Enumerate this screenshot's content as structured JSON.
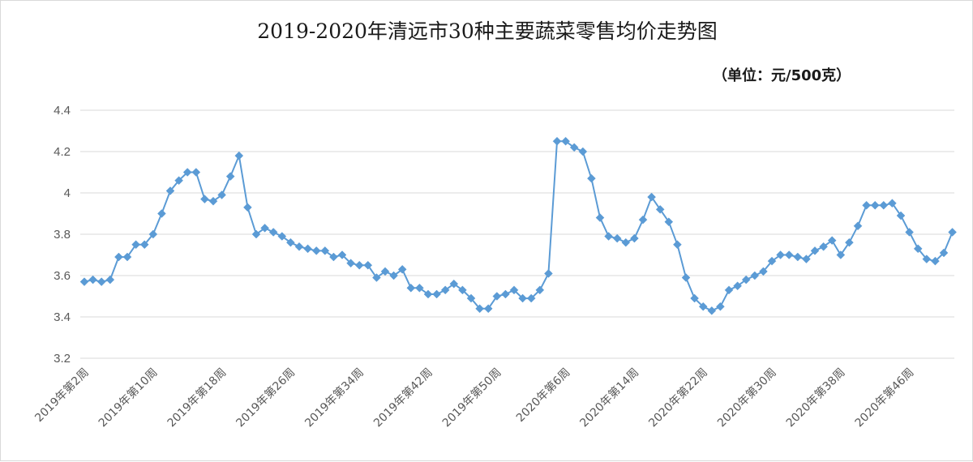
{
  "chart_data": {
    "type": "line",
    "title": "2019-2020年清远市30种主要蔬菜零售均价走势图",
    "unit_note": "（单位：元/500克）",
    "xlabel": "",
    "ylabel": "",
    "ylim": [
      3.2,
      4.4
    ],
    "yticks": [
      "3.2",
      "3.4",
      "3.6",
      "3.8",
      "4",
      "4.2",
      "4.4"
    ],
    "grid": true,
    "legend": "none",
    "series_color": "#5b9bd5",
    "x_tick_labels": [
      "2019年第2周",
      "2019年第10周",
      "2019年第18周",
      "2019年第26周",
      "2019年第34周",
      "2019年第42周",
      "2019年第50周",
      "2020年第6周",
      "2020年第14周",
      "2020年第22周",
      "2020年第30周",
      "2020年第38周",
      "2020年第46周"
    ],
    "series": [
      {
        "values": [
          3.57,
          3.58,
          3.57,
          3.58,
          3.69,
          3.69,
          3.75,
          3.75,
          3.8,
          3.9,
          4.01,
          4.06,
          4.1,
          4.1,
          3.97,
          3.96,
          3.99,
          4.08,
          4.18,
          3.93,
          3.8,
          3.83,
          3.81,
          3.79,
          3.76,
          3.74,
          3.73,
          3.72,
          3.72,
          3.69,
          3.7,
          3.66,
          3.65,
          3.65,
          3.59,
          3.62,
          3.6,
          3.63,
          3.54,
          3.54,
          3.51,
          3.51,
          3.53,
          3.56,
          3.53,
          3.49,
          3.44,
          3.44,
          3.5,
          3.51,
          3.53,
          3.49,
          3.49,
          3.53,
          3.61,
          4.25,
          4.25,
          4.22,
          4.2,
          4.07,
          3.88,
          3.79,
          3.78,
          3.76,
          3.78,
          3.87,
          3.98,
          3.92,
          3.86,
          3.75,
          3.59,
          3.49,
          3.45,
          3.43,
          3.45,
          3.53,
          3.55,
          3.58,
          3.6,
          3.62,
          3.67,
          3.7,
          3.7,
          3.69,
          3.68,
          3.72,
          3.74,
          3.77,
          3.7,
          3.76,
          3.84,
          3.94,
          3.94,
          3.94,
          3.95,
          3.89,
          3.81,
          3.73,
          3.68,
          3.67,
          3.71,
          3.81
        ]
      }
    ]
  }
}
